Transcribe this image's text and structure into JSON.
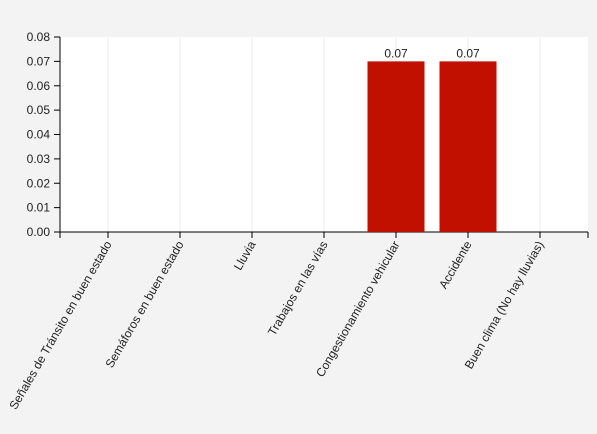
{
  "chart_data": {
    "type": "bar",
    "categories": [
      "Señales de Tránsito en buen estado",
      "Semáforos en buen estado",
      "Lluvia",
      "Trabajos en las vías",
      "Congestionamiento vehicular",
      "Accidente",
      "Buen clima (No hay lluvias)"
    ],
    "values": [
      0,
      0,
      0,
      0,
      0.07,
      0.07,
      0
    ],
    "color": "#c11000",
    "ylim": [
      0,
      0.08
    ],
    "yticks": [
      {
        "value": 0,
        "label": "0.00"
      },
      {
        "value": 0.01,
        "label": "0.01"
      },
      {
        "value": 0.02,
        "label": "0.02"
      },
      {
        "value": 0.03,
        "label": "0.03"
      },
      {
        "value": 0.04,
        "label": "0.04"
      },
      {
        "value": 0.05,
        "label": "0.05"
      },
      {
        "value": 0.06,
        "label": "0.06"
      },
      {
        "value": 0.07,
        "label": "0.07"
      },
      {
        "value": 0.08,
        "label": "0.08"
      }
    ],
    "grid": true
  }
}
